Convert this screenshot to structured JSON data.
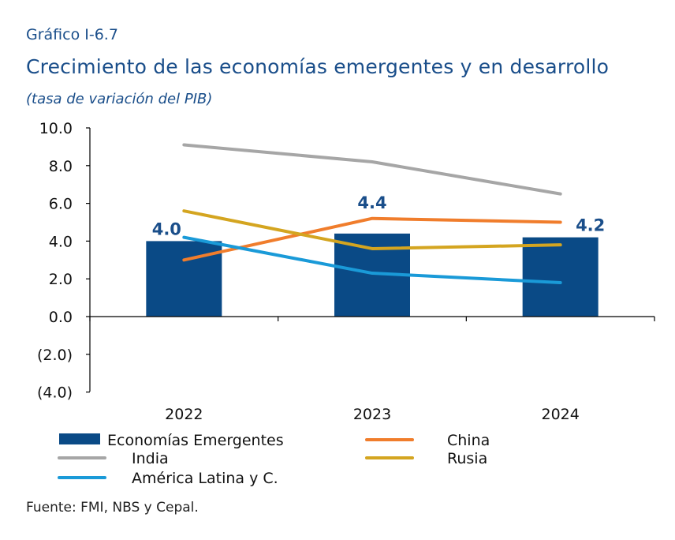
{
  "header": {
    "label": "Gráfico I-6.7",
    "title": "Crecimiento de las economías emergentes y en desarrollo",
    "subtitle": "(tasa de variación del PIB)"
  },
  "footer": {
    "source": "Fuente: FMI, NBS y Cepal."
  },
  "chart_data": {
    "type": "bar",
    "categories": [
      "2022",
      "2023",
      "2024"
    ],
    "ylim": [
      -4,
      10
    ],
    "y_ticks": [
      10,
      8,
      6,
      4,
      2,
      0,
      -2,
      -4
    ],
    "y_tick_labels": [
      "10.0",
      "8.0",
      "6.0",
      "4.0",
      "2.0",
      "0.0",
      "(2.0)",
      "(4.0)"
    ],
    "grid": false,
    "legend_position": "bottom",
    "series": [
      {
        "name": "Economías Emergentes",
        "kind": "bar",
        "color": "#0a4a86",
        "values": [
          4.0,
          4.4,
          4.2
        ],
        "data_labels": [
          "4.0",
          "4.4",
          "4.2"
        ]
      },
      {
        "name": "China",
        "kind": "line",
        "color": "#f07d2c",
        "values": [
          3.0,
          5.2,
          5.0
        ]
      },
      {
        "name": "India",
        "kind": "line",
        "color": "#a6a6a6",
        "values": [
          9.1,
          8.2,
          6.5
        ]
      },
      {
        "name": "Rusia",
        "kind": "line",
        "color": "#d4a520",
        "values": [
          5.6,
          3.6,
          3.8
        ]
      },
      {
        "name": "América Latina y C.",
        "kind": "line",
        "color": "#1a9ad8",
        "values": [
          4.2,
          2.3,
          1.8
        ]
      }
    ]
  }
}
